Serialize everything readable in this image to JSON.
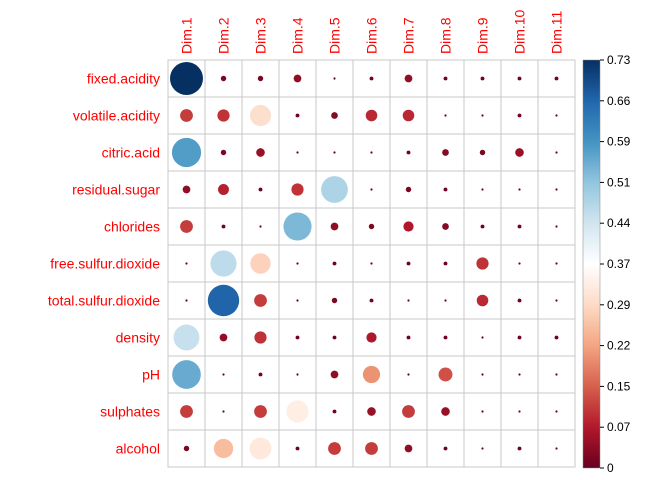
{
  "chart_data": {
    "type": "heatmap",
    "title": "",
    "columns": [
      "Dim.1",
      "Dim.2",
      "Dim.3",
      "Dim.4",
      "Dim.5",
      "Dim.6",
      "Dim.7",
      "Dim.8",
      "Dim.9",
      "Dim.10",
      "Dim.11"
    ],
    "rows": [
      "fixed.acidity",
      "volatile.acidity",
      "citric.acid",
      "residual.sugar",
      "chlorides",
      "free.sulfur.dioxide",
      "total.sulfur.dioxide",
      "density",
      "pH",
      "sulphates",
      "alcohol"
    ],
    "values": [
      [
        0.73,
        0.02,
        0.02,
        0.04,
        0.0,
        0.01,
        0.04,
        0.01,
        0.01,
        0.01,
        0.01
      ],
      [
        0.11,
        0.1,
        0.3,
        0.01,
        0.03,
        0.09,
        0.09,
        0.0,
        0.0,
        0.01,
        0.0
      ],
      [
        0.57,
        0.02,
        0.05,
        0.0,
        0.0,
        0.0,
        0.01,
        0.03,
        0.02,
        0.05,
        0.0
      ],
      [
        0.04,
        0.08,
        0.01,
        0.1,
        0.48,
        0.0,
        0.02,
        0.01,
        0.0,
        0.0,
        0.0
      ],
      [
        0.11,
        0.01,
        0.0,
        0.53,
        0.04,
        0.02,
        0.07,
        0.03,
        0.01,
        0.01,
        0.0
      ],
      [
        0.0,
        0.46,
        0.28,
        0.0,
        0.01,
        0.0,
        0.01,
        0.01,
        0.1,
        0.0,
        0.0
      ],
      [
        0.0,
        0.66,
        0.11,
        0.0,
        0.02,
        0.01,
        0.0,
        0.0,
        0.09,
        0.01,
        0.0
      ],
      [
        0.45,
        0.04,
        0.1,
        0.01,
        0.01,
        0.07,
        0.01,
        0.01,
        0.0,
        0.01,
        0.01
      ],
      [
        0.55,
        0.0,
        0.01,
        0.0,
        0.04,
        0.2,
        0.0,
        0.13,
        0.0,
        0.0,
        0.0
      ],
      [
        0.11,
        0.0,
        0.11,
        0.33,
        0.01,
        0.05,
        0.11,
        0.05,
        0.0,
        0.0,
        0.0
      ],
      [
        0.02,
        0.25,
        0.32,
        0.01,
        0.11,
        0.11,
        0.04,
        0.01,
        0.0,
        0.01,
        0.0
      ]
    ],
    "colorbar": {
      "min": 0,
      "max": 0.73,
      "ticks": [
        "0.73",
        "0.66",
        "0.59",
        "0.51",
        "0.44",
        "0.37",
        "0.29",
        "0.22",
        "0.15",
        "0.07",
        "0"
      ],
      "colors": [
        "#67001f",
        "#b2182b",
        "#d6604d",
        "#f4a582",
        "#fddbc7",
        "#ffffff",
        "#d1e5f0",
        "#92c5de",
        "#4393c3",
        "#2166ac",
        "#053061"
      ]
    },
    "label_color": "#ff0000",
    "grid_color": "#c8c8c8"
  }
}
